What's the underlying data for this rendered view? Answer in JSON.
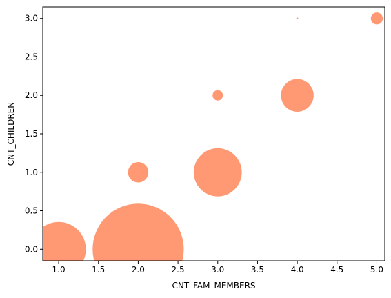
{
  "chart_data": {
    "type": "scatter",
    "title": "",
    "xlabel": "CNT_FAM_MEMBERS",
    "ylabel": "CNT_CHILDREN",
    "xlim": [
      0.8,
      5.1
    ],
    "ylim": [
      -0.15,
      3.15
    ],
    "xticks": [
      1.0,
      1.5,
      2.0,
      2.5,
      3.0,
      3.5,
      4.0,
      4.5,
      5.0
    ],
    "xtick_labels": [
      "1.0",
      "1.5",
      "2.0",
      "2.5",
      "3.0",
      "3.5",
      "4.0",
      "4.5",
      "5.0"
    ],
    "yticks": [
      0.0,
      0.5,
      1.0,
      1.5,
      2.0,
      2.5,
      3.0
    ],
    "ytick_labels": [
      "0.0",
      "0.5",
      "1.0",
      "1.5",
      "2.0",
      "2.5",
      "3.0"
    ],
    "grid": false,
    "legend": "none",
    "marker_color": "#ff7f50",
    "marker_alpha": 0.8,
    "size_encoding": "bubble area proportional to number of records",
    "points": [
      {
        "x": 1,
        "y": 0,
        "size": 2500
      },
      {
        "x": 2,
        "y": 0,
        "size": 7000
      },
      {
        "x": 2,
        "y": 1,
        "size": 350
      },
      {
        "x": 3,
        "y": 1,
        "size": 1950
      },
      {
        "x": 3,
        "y": 2,
        "size": 90
      },
      {
        "x": 4,
        "y": 2,
        "size": 900
      },
      {
        "x": 4,
        "y": 3,
        "size": 3
      },
      {
        "x": 5,
        "y": 3,
        "size": 120
      }
    ]
  }
}
